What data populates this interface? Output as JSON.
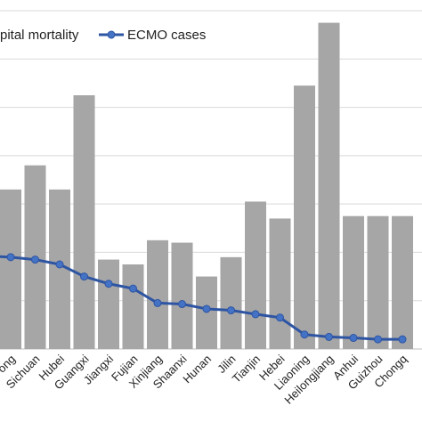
{
  "chart_data": {
    "type": "bar",
    "categories": [
      "Guangdong",
      "Sichuan",
      "Hubei",
      "Guangxi",
      "Jiangxi",
      "Fujian",
      "Xinjiang",
      "Shaanxi",
      "Hunan",
      "Jilin",
      "Tianjin",
      "Hebei",
      "Liaoning",
      "Heilongjiang",
      "Anhui",
      "Guizhou",
      "Chongqing"
    ],
    "tick_labels": [
      "ong",
      "Sichuan",
      "Hubei",
      "Guangxi",
      "Jiangxi",
      "Fujian",
      "Xinjiang",
      "Shaanxi",
      "Hunan",
      "Jilin",
      "Tianjin",
      "Hebei",
      "Liaoning",
      "Heilongjiang",
      "Anhui",
      "Guizhou",
      "Chongq"
    ],
    "series": [
      {
        "name": "Hospital mortality",
        "legend_label": "pital mortality",
        "kind": "bar",
        "color": "#a6a6a6",
        "values": [
          33.0,
          38.0,
          33.0,
          52.5,
          18.5,
          17.5,
          22.5,
          22.0,
          15.0,
          19.0,
          30.5,
          27.0,
          54.5,
          67.5,
          27.5,
          27.5,
          27.5
        ]
      },
      {
        "name": "ECMO cases",
        "legend_label": "ECMO cases",
        "kind": "line",
        "color": "#2e55a3",
        "values": [
          19.0,
          18.5,
          17.5,
          15.0,
          13.5,
          12.5,
          9.5,
          9.3,
          8.3,
          8.0,
          7.2,
          6.5,
          3.0,
          2.5,
          2.3,
          2.0,
          2.0
        ]
      }
    ],
    "ylim": [
      0,
      70
    ],
    "ytick_step": 10,
    "grid": true,
    "legend_position": "top-left"
  }
}
